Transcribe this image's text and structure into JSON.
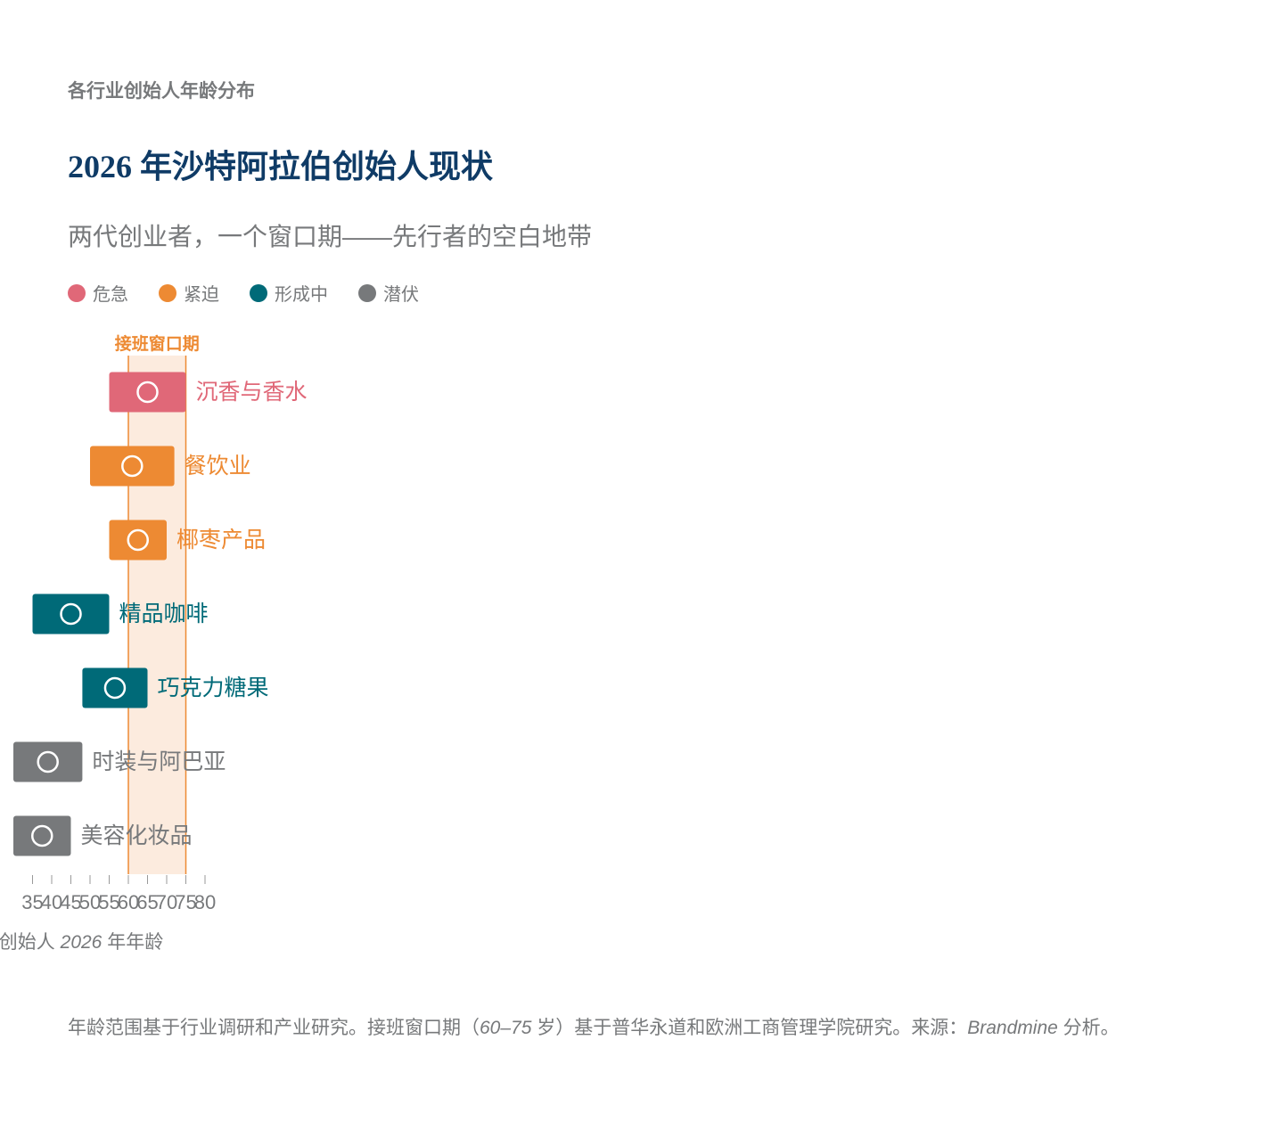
{
  "eyebrow": "各行业创始人年龄分布",
  "title": "2026 年沙特阿拉伯创始人现状",
  "subtitle": "两代创业者，一个窗口期——先行者的空白地带",
  "legend": [
    {
      "label": "危急",
      "color": "#e06878"
    },
    {
      "label": "紧迫",
      "color": "#ed8a33"
    },
    {
      "label": "形成中",
      "color": "#006a78"
    },
    {
      "label": "潜伏",
      "color": "#77797b"
    }
  ],
  "chart_data": {
    "type": "bar",
    "orientation": "horizontal-range",
    "window": {
      "label": "接班窗口期",
      "start": 60,
      "end": 75,
      "color": "#ed8a33",
      "fill": "#fcebde"
    },
    "xlim": [
      30,
      80
    ],
    "xticks": [
      35,
      40,
      45,
      50,
      55,
      60,
      65,
      70,
      75,
      80
    ],
    "xlabel_parts": {
      "pre": "创始人 ",
      "italic": "2026",
      "post": " 年年龄"
    },
    "rows": [
      {
        "label": "沉香与香水",
        "start": 55,
        "end": 75,
        "marker": 65,
        "status": "危急",
        "color": "#e06878"
      },
      {
        "label": "餐饮业",
        "start": 50,
        "end": 72,
        "marker": 61,
        "status": "紧迫",
        "color": "#ed8a33"
      },
      {
        "label": "椰枣产品",
        "start": 55,
        "end": 70,
        "marker": 62.5,
        "status": "紧迫",
        "color": "#ed8a33"
      },
      {
        "label": "精品咖啡",
        "start": 35,
        "end": 55,
        "marker": 45,
        "status": "形成中",
        "color": "#006a78"
      },
      {
        "label": "巧克力糖果",
        "start": 48,
        "end": 65,
        "marker": 56.5,
        "status": "形成中",
        "color": "#006a78"
      },
      {
        "label": "时装与阿巴亚",
        "start": 30,
        "end": 48,
        "marker": 39,
        "status": "潜伏",
        "color": "#77797b"
      },
      {
        "label": "美容化妆品",
        "start": 30,
        "end": 45,
        "marker": 37.5,
        "status": "潜伏",
        "color": "#77797b"
      }
    ]
  },
  "footnote": {
    "part1": "年龄范围基于行业调研和产业研究。接班窗口期（",
    "italic1": "60–75",
    "part2": " 岁）基于普华永道和欧洲工商管理学院研究。来源：",
    "italic2": "Brandmine",
    "part3": " 分析。"
  }
}
